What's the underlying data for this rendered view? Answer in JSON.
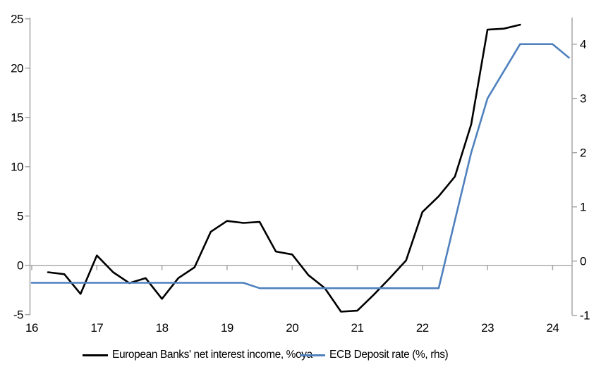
{
  "chart_data": {
    "type": "line",
    "title": "",
    "x_axis": {
      "tick_labels": [
        "16",
        "17",
        "18",
        "19",
        "20",
        "21",
        "22",
        "23",
        "24"
      ],
      "tick_values": [
        16,
        17,
        18,
        19,
        20,
        21,
        22,
        23,
        24
      ],
      "range": [
        16,
        24.3
      ]
    },
    "left_axis": {
      "ticks": [
        -5,
        0,
        5,
        10,
        15,
        20,
        25
      ],
      "range": [
        -5,
        25
      ]
    },
    "right_axis": {
      "ticks": [
        -1,
        0,
        1,
        2,
        3,
        4
      ],
      "range": [
        -1,
        4.5
      ]
    },
    "grid": "zero-line-only",
    "legend_position": "bottom",
    "series": [
      {
        "name": "European Banks' net interest income, %oya",
        "axis": "left",
        "color": "#000000",
        "points": [
          [
            16.25,
            -0.7
          ],
          [
            16.5,
            -0.9
          ],
          [
            16.75,
            -2.9
          ],
          [
            17.0,
            1.0
          ],
          [
            17.25,
            -0.7
          ],
          [
            17.5,
            -1.8
          ],
          [
            17.75,
            -1.3
          ],
          [
            18.0,
            -3.4
          ],
          [
            18.25,
            -1.3
          ],
          [
            18.5,
            -0.2
          ],
          [
            18.75,
            3.4
          ],
          [
            19.0,
            4.5
          ],
          [
            19.25,
            4.3
          ],
          [
            19.5,
            4.4
          ],
          [
            19.75,
            1.4
          ],
          [
            20.0,
            1.1
          ],
          [
            20.25,
            -1.0
          ],
          [
            20.5,
            -2.3
          ],
          [
            20.75,
            -4.7
          ],
          [
            21.0,
            -4.6
          ],
          [
            21.25,
            -3.0
          ],
          [
            21.5,
            -1.3
          ],
          [
            21.75,
            0.5
          ],
          [
            22.0,
            5.4
          ],
          [
            22.25,
            7.0
          ],
          [
            22.5,
            9.0
          ],
          [
            22.75,
            14.3
          ],
          [
            23.0,
            23.9
          ],
          [
            23.25,
            24.0
          ],
          [
            23.5,
            24.4
          ]
        ]
      },
      {
        "name": "ECB Deposit rate (%, rhs)",
        "axis": "right",
        "color": "#4f81bd",
        "points": [
          [
            16.0,
            -0.4
          ],
          [
            16.25,
            -0.4
          ],
          [
            16.5,
            -0.4
          ],
          [
            16.75,
            -0.4
          ],
          [
            17.0,
            -0.4
          ],
          [
            17.25,
            -0.4
          ],
          [
            17.5,
            -0.4
          ],
          [
            17.75,
            -0.4
          ],
          [
            18.0,
            -0.4
          ],
          [
            18.25,
            -0.4
          ],
          [
            18.5,
            -0.4
          ],
          [
            18.75,
            -0.4
          ],
          [
            19.0,
            -0.4
          ],
          [
            19.25,
            -0.4
          ],
          [
            19.5,
            -0.5
          ],
          [
            19.75,
            -0.5
          ],
          [
            20.0,
            -0.5
          ],
          [
            20.25,
            -0.5
          ],
          [
            20.5,
            -0.5
          ],
          [
            20.75,
            -0.5
          ],
          [
            21.0,
            -0.5
          ],
          [
            21.25,
            -0.5
          ],
          [
            21.5,
            -0.5
          ],
          [
            21.75,
            -0.5
          ],
          [
            22.0,
            -0.5
          ],
          [
            22.25,
            -0.5
          ],
          [
            22.5,
            0.75
          ],
          [
            22.75,
            2.0
          ],
          [
            23.0,
            3.0
          ],
          [
            23.25,
            3.5
          ],
          [
            23.5,
            4.0
          ],
          [
            23.75,
            4.0
          ],
          [
            24.0,
            4.0
          ],
          [
            24.25,
            3.75
          ]
        ]
      }
    ]
  },
  "colors": {
    "axis_line": "#a6a6a6",
    "zero_line": "#ababab",
    "background": "#ffffff",
    "nii_line": "#000000",
    "ecb_line": "#4f81bd",
    "label_text": "#000000"
  }
}
